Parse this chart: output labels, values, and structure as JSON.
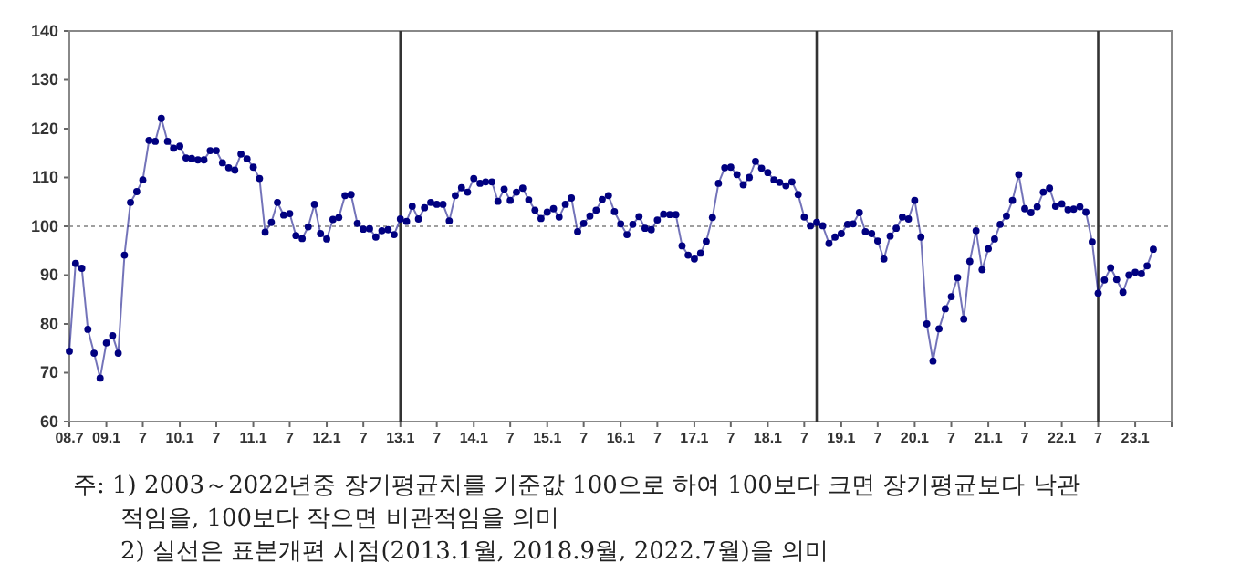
{
  "chart_data": {
    "type": "line",
    "marker": "circle",
    "line_style": "solid",
    "grid": false,
    "xlim": [
      "2008-07",
      "2023-07"
    ],
    "xticks": [
      {
        "value": "2008-07",
        "label": "08.7"
      },
      {
        "value": "2009-01",
        "label": "09.1"
      },
      {
        "value": "2009-07",
        "label": "7"
      },
      {
        "value": "2010-01",
        "label": "10.1"
      },
      {
        "value": "2010-07",
        "label": "7"
      },
      {
        "value": "2011-01",
        "label": "11.1"
      },
      {
        "value": "2011-07",
        "label": "7"
      },
      {
        "value": "2012-01",
        "label": "12.1"
      },
      {
        "value": "2012-07",
        "label": "7"
      },
      {
        "value": "2013-01",
        "label": "13.1"
      },
      {
        "value": "2013-07",
        "label": "7"
      },
      {
        "value": "2014-01",
        "label": "14.1"
      },
      {
        "value": "2014-07",
        "label": "7"
      },
      {
        "value": "2015-01",
        "label": "15.1"
      },
      {
        "value": "2015-07",
        "label": "7"
      },
      {
        "value": "2016-01",
        "label": "16.1"
      },
      {
        "value": "2016-07",
        "label": "7"
      },
      {
        "value": "2017-01",
        "label": "17.1"
      },
      {
        "value": "2017-07",
        "label": "7"
      },
      {
        "value": "2018-01",
        "label": "18.1"
      },
      {
        "value": "2018-07",
        "label": "7"
      },
      {
        "value": "2019-01",
        "label": "19.1"
      },
      {
        "value": "2019-07",
        "label": "7"
      },
      {
        "value": "2020-01",
        "label": "20.1"
      },
      {
        "value": "2020-07",
        "label": "7"
      },
      {
        "value": "2021-01",
        "label": "21.1"
      },
      {
        "value": "2021-07",
        "label": "7"
      },
      {
        "value": "2022-01",
        "label": "22.1"
      },
      {
        "value": "2022-07",
        "label": "7"
      },
      {
        "value": "2023-01",
        "label": "23.1"
      }
    ],
    "ylim": [
      60,
      140
    ],
    "yticks": [
      60,
      70,
      80,
      90,
      100,
      110,
      120,
      130,
      140
    ],
    "x": [
      "2008-07",
      "2008-08",
      "2008-09",
      "2008-10",
      "2008-11",
      "2008-12",
      "2009-01",
      "2009-02",
      "2009-03",
      "2009-04",
      "2009-05",
      "2009-06",
      "2009-07",
      "2009-08",
      "2009-09",
      "2009-10",
      "2009-11",
      "2009-12",
      "2010-01",
      "2010-02",
      "2010-03",
      "2010-04",
      "2010-05",
      "2010-06",
      "2010-07",
      "2010-08",
      "2010-09",
      "2010-10",
      "2010-11",
      "2010-12",
      "2011-01",
      "2011-02",
      "2011-03",
      "2011-04",
      "2011-05",
      "2011-06",
      "2011-07",
      "2011-08",
      "2011-09",
      "2011-10",
      "2011-11",
      "2011-12",
      "2012-01",
      "2012-02",
      "2012-03",
      "2012-04",
      "2012-05",
      "2012-06",
      "2012-07",
      "2012-08",
      "2012-09",
      "2012-10",
      "2012-11",
      "2012-12",
      "2013-01",
      "2013-02",
      "2013-03",
      "2013-04",
      "2013-05",
      "2013-06",
      "2013-07",
      "2013-08",
      "2013-09",
      "2013-10",
      "2013-11",
      "2013-12",
      "2014-01",
      "2014-02",
      "2014-03",
      "2014-04",
      "2014-05",
      "2014-06",
      "2014-07",
      "2014-08",
      "2014-09",
      "2014-10",
      "2014-11",
      "2014-12",
      "2015-01",
      "2015-02",
      "2015-03",
      "2015-04",
      "2015-05",
      "2015-06",
      "2015-07",
      "2015-08",
      "2015-09",
      "2015-10",
      "2015-11",
      "2015-12",
      "2016-01",
      "2016-02",
      "2016-03",
      "2016-04",
      "2016-05",
      "2016-06",
      "2016-07",
      "2016-08",
      "2016-09",
      "2016-10",
      "2016-11",
      "2016-12",
      "2017-01",
      "2017-02",
      "2017-03",
      "2017-04",
      "2017-05",
      "2017-06",
      "2017-07",
      "2017-08",
      "2017-09",
      "2017-10",
      "2017-11",
      "2017-12",
      "2018-01",
      "2018-02",
      "2018-03",
      "2018-04",
      "2018-05",
      "2018-06",
      "2018-07",
      "2018-08",
      "2018-09",
      "2018-10",
      "2018-11",
      "2018-12",
      "2019-01",
      "2019-02",
      "2019-03",
      "2019-04",
      "2019-05",
      "2019-06",
      "2019-07",
      "2019-08",
      "2019-09",
      "2019-10",
      "2019-11",
      "2019-12",
      "2020-01",
      "2020-02",
      "2020-03",
      "2020-04",
      "2020-05",
      "2020-06",
      "2020-07",
      "2020-08",
      "2020-09",
      "2020-10",
      "2020-11",
      "2020-12",
      "2021-01",
      "2021-02",
      "2021-03",
      "2021-04",
      "2021-05",
      "2021-06",
      "2021-07",
      "2021-08",
      "2021-09",
      "2021-10",
      "2021-11",
      "2021-12",
      "2022-01",
      "2022-02",
      "2022-03",
      "2022-04",
      "2022-05",
      "2022-06",
      "2022-07",
      "2022-08",
      "2022-09",
      "2022-10",
      "2022-11",
      "2022-12",
      "2023-01",
      "2023-02",
      "2023-03",
      "2023-04"
    ],
    "series": [
      {
        "color": "#000080",
        "values": [
          74.4,
          92.4,
          91.4,
          78.9,
          74,
          68.9,
          76.1,
          77.6,
          74,
          94.1,
          104.9,
          107.1,
          109.5,
          117.6,
          117.4,
          122.1,
          117.4,
          116,
          116.4,
          114,
          113.9,
          113.6,
          113.6,
          115.5,
          115.5,
          113,
          112,
          111.5,
          114.8,
          113.8,
          112.1,
          109.8,
          98.8,
          100.8,
          104.9,
          102.3,
          102.6,
          98.1,
          97.5,
          99.9,
          104.5,
          98.5,
          97.4,
          101.4,
          101.8,
          106.3,
          106.5,
          100.6,
          99.4,
          99.5,
          97.8,
          99.1,
          99.3,
          98.3,
          101.5,
          101,
          104.1,
          101.5,
          103.8,
          104.9,
          104.5,
          104.5,
          101.1,
          106.3,
          107.9,
          107,
          109.8,
          108.8,
          109.1,
          109.1,
          105.1,
          107.6,
          105.3,
          107,
          107.8,
          105.4,
          103.3,
          101.6,
          102.9,
          103.6,
          101.9,
          104.5,
          105.8,
          98.9,
          100.6,
          102.1,
          103.3,
          105.5,
          106.3,
          103,
          100.5,
          98.3,
          100.4,
          102,
          99.6,
          99.3,
          101.3,
          102.5,
          102.4,
          102.4,
          96,
          94.1,
          93.3,
          94.5,
          96.9,
          101.8,
          108.8,
          112,
          112.1,
          110.6,
          108.5,
          110,
          113.3,
          111.9,
          111,
          109.5,
          109,
          108.3,
          109.1,
          106.5,
          101.9,
          100.1,
          100.8,
          100.1,
          96.5,
          97.8,
          98.5,
          100.4,
          100.5,
          102.8,
          98.9,
          98.5,
          97,
          93.3,
          98,
          99.6,
          101.9,
          101.5,
          105.3,
          97.8,
          80,
          72.4,
          79,
          83.1,
          85.6,
          89.5,
          81,
          92.8,
          99.1,
          91.1,
          95.4,
          97.4,
          100.4,
          102.1,
          105.3,
          110.6,
          103.6,
          102.8,
          104,
          107,
          107.8,
          104.1,
          104.6,
          103.4,
          103.5,
          104,
          102.9,
          96.8,
          86.3,
          89,
          91.5,
          89.1,
          86.5,
          90,
          90.6,
          90.3,
          91.9,
          95.3
        ]
      }
    ],
    "ref_lines": [
      {
        "axis": "y",
        "value": 100,
        "line_style": "dotted",
        "color": "#808080"
      },
      {
        "axis": "x",
        "value": "2013-01",
        "line_style": "solid",
        "color": "#333333"
      },
      {
        "axis": "x",
        "value": "2018-09",
        "line_style": "solid",
        "color": "#333333"
      },
      {
        "axis": "x",
        "value": "2022-07",
        "line_style": "solid",
        "color": "#333333"
      }
    ],
    "annotations": [
      "주: 1) 2003～2022년중 장기평균치를 기준값 100으로 하여 100보다 크면 장기평균보다 낙관적임을, 100보다 작으면 비관적임을 의미",
      "2) 실선은 표본개편 시점(2013.1월, 2018.9월, 2022.7월)을 의미"
    ]
  }
}
